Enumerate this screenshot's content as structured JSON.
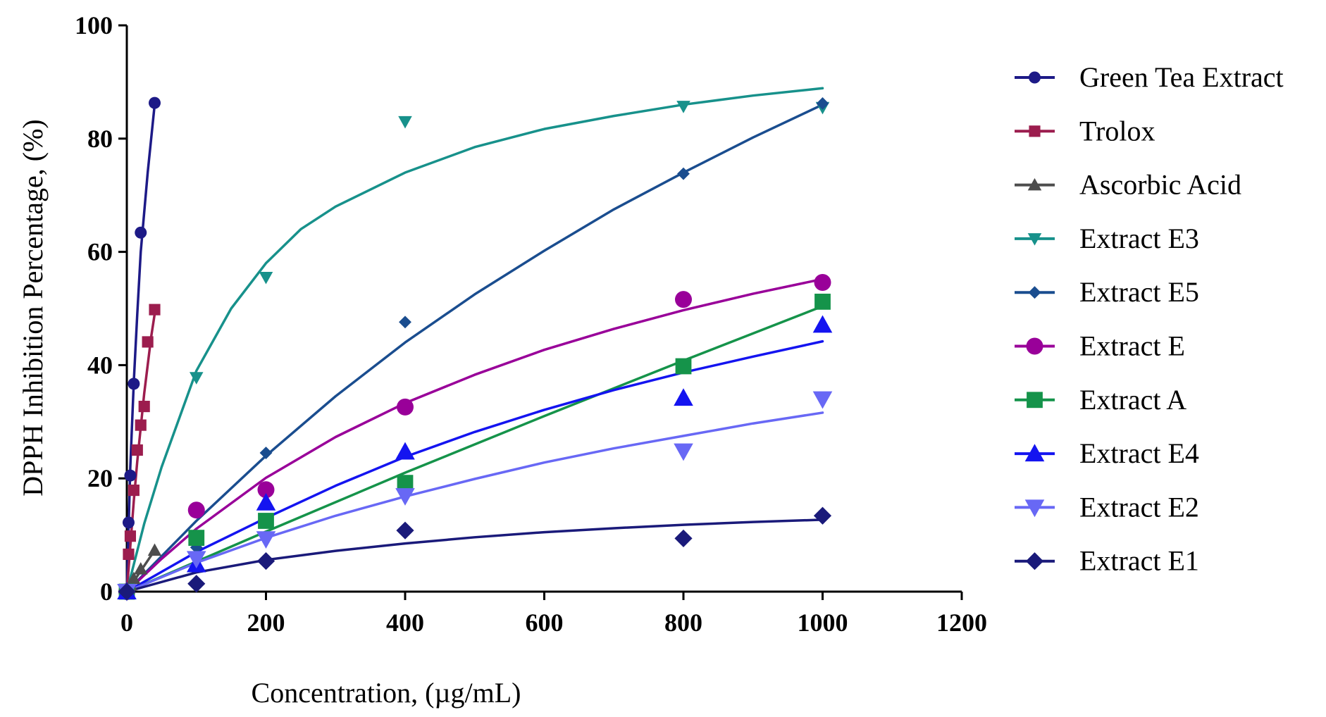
{
  "chart_data": {
    "type": "scatter",
    "title": "",
    "xlabel": "Concentration, (µg/mL)",
    "ylabel": "DPPH Inhibition Percentage, (%)",
    "xlim": [
      0,
      1200
    ],
    "ylim": [
      0,
      100
    ],
    "xticks": [
      "0",
      "200",
      "400",
      "600",
      "800",
      "1000",
      "1200"
    ],
    "yticks": [
      "0",
      "20",
      "40",
      "60",
      "80",
      "100"
    ],
    "legend_position": "right",
    "series": [
      {
        "name": "Green Tea Extract",
        "color": "#1d1a87",
        "marker": "circle",
        "marker_size": "small",
        "x": [
          0,
          2.5,
          5,
          10,
          20,
          40
        ],
        "y": [
          0,
          12.2,
          20.5,
          36.7,
          63.4,
          86.3
        ],
        "fit": {
          "x": [
            0,
            5,
            10,
            15,
            20,
            25,
            30,
            35,
            40
          ],
          "y": [
            0,
            22,
            37,
            49,
            60,
            67,
            74,
            80,
            86
          ]
        }
      },
      {
        "name": "Trolox",
        "color": "#9c1d4e",
        "marker": "square",
        "marker_size": "small",
        "x": [
          0,
          2.5,
          5,
          10,
          15,
          20,
          25,
          30,
          40
        ],
        "y": [
          0,
          6.6,
          9.8,
          17.9,
          25.0,
          29.4,
          32.7,
          44.1,
          49.8
        ],
        "fit": {
          "x": [
            0,
            5,
            10,
            15,
            20,
            25,
            30,
            35,
            40
          ],
          "y": [
            0,
            8,
            16,
            23,
            29,
            35,
            40,
            45,
            49
          ]
        }
      },
      {
        "name": "Ascorbic Acid",
        "color": "#4d4d4d",
        "marker": "triangle-up",
        "marker_size": "small",
        "x": [
          0,
          5,
          10,
          20,
          40
        ],
        "y": [
          0,
          1.2,
          2.3,
          4.0,
          7.3
        ],
        "fit": {
          "x": [
            0,
            40
          ],
          "y": [
            0,
            7.3
          ]
        }
      },
      {
        "name": "Extract E3",
        "color": "#17918b",
        "marker": "triangle-down",
        "marker_size": "small",
        "x": [
          0,
          100,
          200,
          400,
          800,
          1000
        ],
        "y": [
          0,
          37.8,
          55.5,
          83.0,
          85.7,
          85.5
        ],
        "fit": {
          "x": [
            0,
            25,
            50,
            100,
            150,
            200,
            250,
            300,
            400,
            500,
            600,
            700,
            800,
            900,
            1000
          ],
          "y": [
            0,
            12,
            22,
            39,
            50,
            58,
            64,
            68,
            74,
            78.5,
            81.7,
            84,
            86,
            87.6,
            88.9
          ]
        }
      },
      {
        "name": "Extract E5",
        "color": "#1a4d8f",
        "marker": "diamond",
        "marker_size": "small",
        "x": [
          0,
          100,
          200,
          400,
          800,
          1000
        ],
        "y": [
          0,
          7.8,
          24.5,
          47.6,
          73.8,
          86.2
        ],
        "fit": {
          "x": [
            0,
            100,
            200,
            300,
            400,
            500,
            600,
            700,
            800,
            900,
            1000
          ],
          "y": [
            0,
            12.5,
            24,
            34.5,
            44,
            52.5,
            60.2,
            67.5,
            74,
            80.2,
            86
          ]
        }
      },
      {
        "name": "Extract E",
        "color": "#990099",
        "marker": "circle",
        "marker_size": "large",
        "x": [
          0,
          100,
          200,
          400,
          800,
          1000
        ],
        "y": [
          0,
          14.4,
          18.0,
          32.6,
          51.6,
          54.6
        ],
        "fit": {
          "x": [
            0,
            50,
            100,
            200,
            300,
            400,
            500,
            600,
            700,
            800,
            900,
            1000
          ],
          "y": [
            0,
            5.8,
            11.1,
            20.1,
            27.3,
            33.3,
            38.3,
            42.7,
            46.4,
            49.7,
            52.6,
            55.2
          ]
        }
      },
      {
        "name": "Extract A",
        "color": "#15934a",
        "marker": "square",
        "marker_size": "large",
        "x": [
          0,
          100,
          200,
          400,
          800,
          1000
        ],
        "y": [
          0,
          9.5,
          12.5,
          19.2,
          39.8,
          51.2
        ],
        "fit": {
          "x": [
            0,
            200,
            400,
            600,
            800,
            1000
          ],
          "y": [
            0,
            10.6,
            21.0,
            31.0,
            40.8,
            50.4
          ]
        }
      },
      {
        "name": "Extract E4",
        "color": "#1414f0",
        "marker": "triangle-up",
        "marker_size": "large",
        "x": [
          0,
          100,
          200,
          400,
          800,
          1000
        ],
        "y": [
          0,
          4.8,
          15.7,
          24.7,
          34.2,
          47.1
        ],
        "fit": {
          "x": [
            0,
            100,
            200,
            300,
            400,
            500,
            600,
            700,
            800,
            900,
            1000
          ],
          "y": [
            0,
            7,
            13,
            18.7,
            23.8,
            28.2,
            32.1,
            35.6,
            38.7,
            41.5,
            44.2
          ]
        }
      },
      {
        "name": "Extract E2",
        "color": "#6868f5",
        "marker": "triangle-down",
        "marker_size": "large",
        "x": [
          0,
          100,
          200,
          400,
          800,
          1000
        ],
        "y": [
          0,
          5.8,
          9.3,
          16.9,
          24.8,
          34.0
        ],
        "fit": {
          "x": [
            0,
            100,
            200,
            300,
            400,
            500,
            600,
            700,
            800,
            900,
            1000
          ],
          "y": [
            0,
            5.1,
            9.5,
            13.4,
            16.8,
            19.9,
            22.8,
            25.3,
            27.5,
            29.7,
            31.6
          ]
        }
      },
      {
        "name": "Extract E1",
        "color": "#1a1a7a",
        "marker": "diamond",
        "marker_size": "large",
        "x": [
          0,
          100,
          200,
          400,
          800,
          1000
        ],
        "y": [
          0,
          1.4,
          5.4,
          10.8,
          9.4,
          13.4
        ],
        "fit": {
          "x": [
            0,
            100,
            200,
            300,
            400,
            500,
            600,
            700,
            800,
            900,
            1000
          ],
          "y": [
            0,
            3.4,
            5.6,
            7.2,
            8.5,
            9.6,
            10.5,
            11.2,
            11.8,
            12.3,
            12.7
          ]
        }
      }
    ]
  }
}
